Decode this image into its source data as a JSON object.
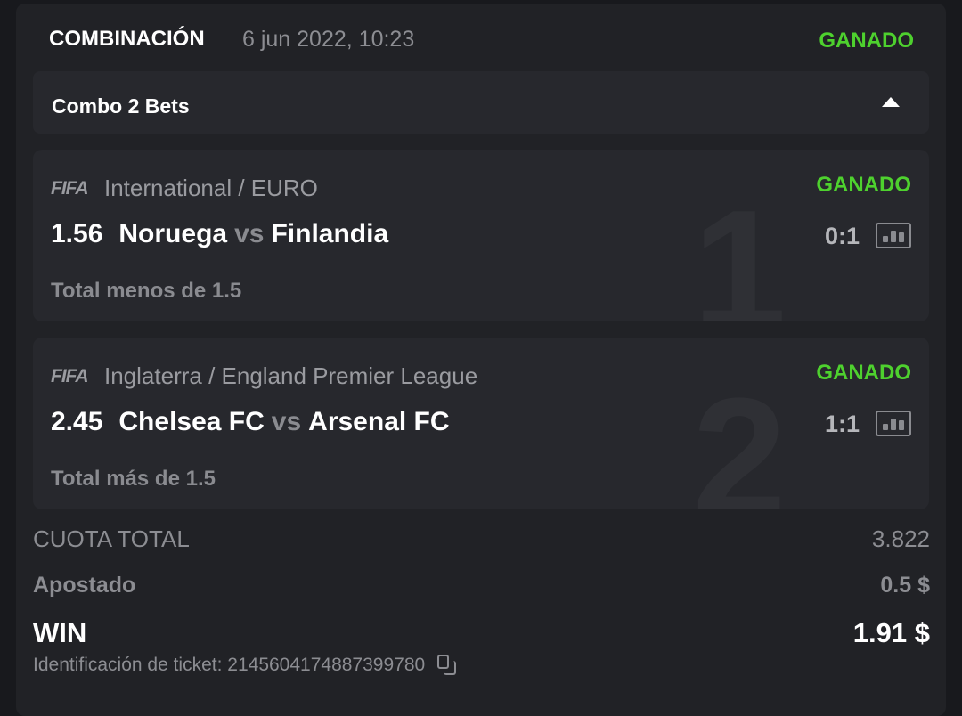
{
  "header": {
    "title": "COMBINACIÓN",
    "date": "6 jun 2022, 10:23",
    "status": "GANADO"
  },
  "combo": {
    "label": "Combo 2 Bets",
    "toggle_icon": "triangle-up-icon"
  },
  "bets": [
    {
      "index": "1",
      "sport_logo": "FIFA",
      "league": "International / EURO",
      "status": "GANADO",
      "odds": "1.56",
      "home": "Noruega",
      "vs": "vs",
      "away": "Finlandia",
      "score": "0:1",
      "market": "Total menos de 1.5"
    },
    {
      "index": "2",
      "sport_logo": "FIFA",
      "league": "Inglaterra / England Premier League",
      "status": "GANADO",
      "odds": "2.45",
      "home": "Chelsea FC",
      "vs": "vs",
      "away": "Arsenal FC",
      "score": "1:1",
      "market": "Total más de 1.5"
    }
  ],
  "summary": {
    "total_odds_label": "CUOTA TOTAL",
    "total_odds": "3.822",
    "stake_label": "Apostado",
    "stake": "0.5 $",
    "win_label": "WIN",
    "win": "1.91 $",
    "ticket_label": "Identificación de ticket: 2145604174887399780"
  },
  "colors": {
    "won": "#4ed12e",
    "background": "#212226",
    "card": "#27282d"
  }
}
